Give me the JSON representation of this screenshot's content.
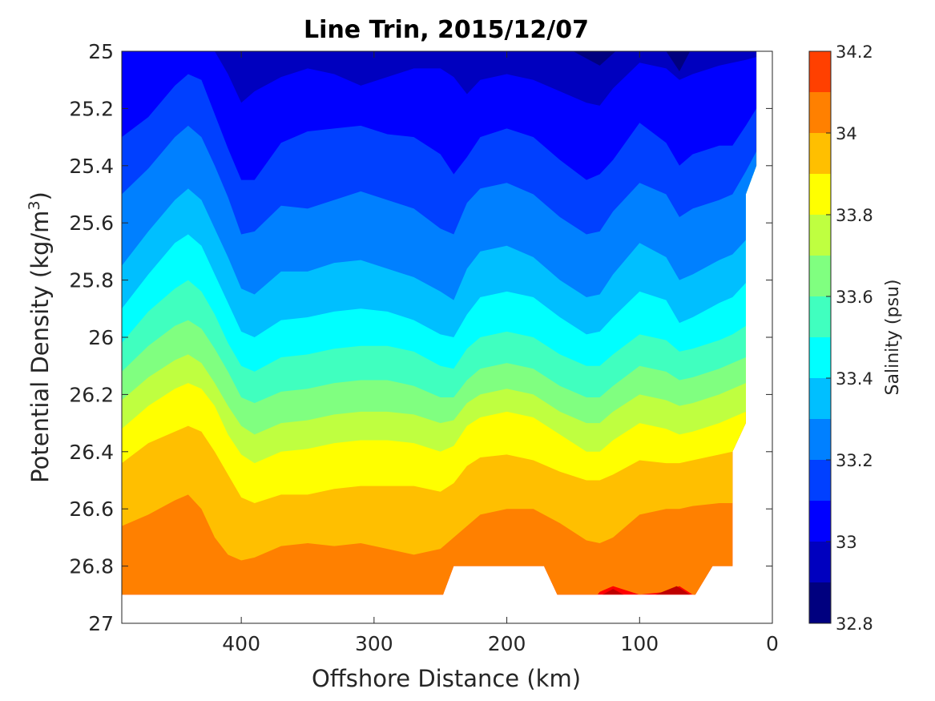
{
  "chart_data": {
    "type": "contour",
    "title": "Line Trin, 2015/12/07",
    "xlabel": "Offshore Distance (km)",
    "ylabel_main": "Potential Density (kg/m",
    "ylabel_sup": "3",
    "ylabel_close": ")",
    "xlim": [
      490,
      0
    ],
    "ylim": [
      27,
      25
    ],
    "x_reversed": true,
    "y_reversed": true,
    "xticks": [
      400,
      300,
      200,
      100,
      0
    ],
    "xtick_labels": [
      "400",
      "300",
      "200",
      "100",
      "0"
    ],
    "yticks": [
      25,
      25.2,
      25.4,
      25.6,
      25.8,
      26,
      26.2,
      26.4,
      26.6,
      26.8,
      27
    ],
    "ytick_labels": [
      "25",
      "25.2",
      "25.4",
      "25.6",
      "25.8",
      "26",
      "26.2",
      "26.4",
      "26.6",
      "26.8",
      "27"
    ],
    "colorbar": {
      "label": "Salinity (psu)",
      "range": [
        32.8,
        34.2
      ],
      "tick_values": [
        32.8,
        33,
        33.2,
        33.4,
        33.6,
        33.8,
        34,
        34.2
      ],
      "tick_labels": [
        "32.8",
        "33",
        "33.2",
        "33.4",
        "33.6",
        "33.8",
        "34",
        "34.2"
      ],
      "levels": [
        32.8,
        32.9,
        33.0,
        33.1,
        33.2,
        33.3,
        33.4,
        33.5,
        33.6,
        33.7,
        33.8,
        33.9,
        34.0,
        34.1,
        34.2
      ],
      "colors": [
        "#00007f",
        "#0000bf",
        "#0000ff",
        "#0040ff",
        "#0080ff",
        "#00bfff",
        "#00ffff",
        "#40ffbf",
        "#80ff80",
        "#bfff40",
        "#ffff00",
        "#ffbf00",
        "#ff8000",
        "#ff4000",
        "#ff0000",
        "#bf0000"
      ]
    },
    "data_extent": {
      "x_max": 490,
      "x_min_top": 12,
      "x_min_bottom": 30,
      "y_bottom": 26.9,
      "gap_x": [
        162,
        248
      ],
      "gap_y_top": 26.8
    },
    "isohaline_depths": {
      "x": [
        490,
        470,
        450,
        440,
        430,
        420,
        410,
        400,
        390,
        370,
        350,
        330,
        310,
        290,
        270,
        250,
        240,
        230,
        220,
        200,
        180,
        160,
        140,
        130,
        120,
        100,
        80,
        70,
        60,
        40,
        30,
        20,
        12
      ],
      "contours": [
        {
          "level": 33.0,
          "y": [
            25.0,
            25.0,
            25.0,
            25.0,
            25.0,
            25.0,
            25.08,
            25.18,
            25.14,
            25.09,
            25.06,
            25.08,
            25.12,
            25.09,
            25.06,
            25.06,
            25.09,
            25.15,
            25.1,
            25.08,
            25.1,
            25.14,
            25.18,
            25.19,
            25.13,
            25.04,
            25.06,
            25.1,
            25.08,
            25.05,
            25.04,
            25.03,
            25.02
          ]
        },
        {
          "level": 33.1,
          "y": [
            25.3,
            25.23,
            25.12,
            25.08,
            25.1,
            25.22,
            25.34,
            25.45,
            25.45,
            25.32,
            25.28,
            25.27,
            25.26,
            25.29,
            25.3,
            25.36,
            25.43,
            25.37,
            25.3,
            25.27,
            25.3,
            25.38,
            25.45,
            25.43,
            25.38,
            25.25,
            25.32,
            25.4,
            25.36,
            25.33,
            25.33,
            25.26,
            25.2
          ]
        },
        {
          "level": 33.2,
          "y": [
            25.5,
            25.41,
            25.3,
            25.26,
            25.3,
            25.4,
            25.51,
            25.64,
            25.63,
            25.54,
            25.55,
            25.52,
            25.49,
            25.52,
            25.55,
            25.62,
            25.64,
            25.53,
            25.48,
            25.46,
            25.5,
            25.58,
            25.64,
            25.63,
            25.56,
            25.46,
            25.5,
            25.58,
            25.55,
            25.52,
            25.5,
            25.42,
            25.35
          ]
        },
        {
          "level": 33.3,
          "y": [
            25.75,
            25.63,
            25.52,
            25.48,
            25.52,
            25.62,
            25.72,
            25.83,
            25.85,
            25.77,
            25.77,
            25.74,
            25.73,
            25.76,
            25.79,
            25.84,
            25.87,
            25.76,
            25.7,
            25.68,
            25.72,
            25.8,
            25.86,
            25.85,
            25.78,
            25.67,
            25.72,
            25.8,
            25.78,
            25.73,
            25.71,
            25.66,
            25.6
          ]
        },
        {
          "level": 33.4,
          "y": [
            25.9,
            25.78,
            25.67,
            25.64,
            25.68,
            25.78,
            25.88,
            25.98,
            26.0,
            25.94,
            25.93,
            25.91,
            25.9,
            25.91,
            25.94,
            25.99,
            26.0,
            25.92,
            25.86,
            25.84,
            25.86,
            25.93,
            25.99,
            25.98,
            25.93,
            25.84,
            25.87,
            25.95,
            25.93,
            25.88,
            25.86,
            25.81,
            25.77
          ]
        },
        {
          "level": 33.5,
          "y": [
            26.02,
            25.91,
            25.83,
            25.8,
            25.84,
            25.92,
            26.02,
            26.1,
            26.12,
            26.07,
            26.06,
            26.04,
            26.03,
            26.03,
            26.05,
            26.1,
            26.11,
            26.04,
            26.0,
            25.98,
            26.0,
            26.06,
            26.1,
            26.1,
            26.06,
            25.99,
            26.01,
            26.05,
            26.04,
            26.01,
            25.99,
            25.96,
            25.94
          ]
        },
        {
          "level": 33.6,
          "y": [
            26.12,
            26.03,
            25.96,
            25.94,
            25.97,
            26.04,
            26.12,
            26.21,
            26.23,
            26.19,
            26.18,
            26.16,
            26.15,
            26.15,
            26.17,
            26.21,
            26.21,
            26.15,
            26.11,
            26.09,
            26.11,
            26.17,
            26.21,
            26.21,
            26.17,
            26.1,
            26.12,
            26.15,
            26.14,
            26.11,
            26.09,
            26.07,
            26.05
          ]
        },
        {
          "level": 33.7,
          "y": [
            26.22,
            26.14,
            26.08,
            26.06,
            26.09,
            26.16,
            26.24,
            26.31,
            26.34,
            26.3,
            26.29,
            26.27,
            26.26,
            26.26,
            26.27,
            26.3,
            26.29,
            26.23,
            26.2,
            26.18,
            26.2,
            26.26,
            26.3,
            26.3,
            26.26,
            26.2,
            26.22,
            26.24,
            26.23,
            26.2,
            26.18,
            26.16,
            26.14
          ]
        },
        {
          "level": 33.8,
          "y": [
            26.32,
            26.24,
            26.18,
            26.16,
            26.18,
            26.24,
            26.34,
            26.41,
            26.44,
            26.4,
            26.39,
            26.37,
            26.36,
            26.36,
            26.37,
            26.4,
            26.38,
            26.31,
            26.28,
            26.26,
            26.28,
            26.34,
            26.4,
            26.4,
            26.36,
            26.3,
            26.32,
            26.34,
            26.33,
            26.3,
            26.28,
            26.26,
            26.24
          ]
        },
        {
          "level": 33.9,
          "y": [
            26.44,
            26.37,
            26.33,
            26.31,
            26.33,
            26.4,
            26.48,
            26.56,
            26.58,
            26.55,
            26.55,
            26.53,
            26.52,
            26.52,
            26.52,
            26.54,
            26.51,
            26.45,
            26.42,
            26.41,
            26.43,
            26.47,
            26.5,
            26.5,
            26.48,
            26.43,
            26.44,
            26.44,
            26.43,
            26.41,
            26.4,
            26.38,
            26.36
          ]
        },
        {
          "level": 34.0,
          "y": [
            26.66,
            26.62,
            26.57,
            26.55,
            26.6,
            26.7,
            26.76,
            26.78,
            26.77,
            26.73,
            26.72,
            26.73,
            26.72,
            26.74,
            26.76,
            26.74,
            26.7,
            26.66,
            26.62,
            26.6,
            26.6,
            26.65,
            26.71,
            26.72,
            26.7,
            26.62,
            26.6,
            26.6,
            26.59,
            26.58,
            26.58,
            26.56,
            26.55
          ]
        },
        {
          "level": 34.1,
          "y": [
            26.95,
            26.95,
            26.95,
            26.95,
            26.95,
            26.95,
            26.95,
            26.95,
            26.95,
            26.95,
            26.95,
            26.95,
            26.95,
            26.95,
            26.95,
            26.95,
            26.95,
            26.95,
            26.95,
            26.95,
            26.95,
            26.95,
            26.95,
            26.89,
            26.87,
            26.9,
            26.89,
            26.87,
            26.9,
            26.95,
            26.95,
            26.95,
            26.95
          ]
        }
      ]
    }
  }
}
